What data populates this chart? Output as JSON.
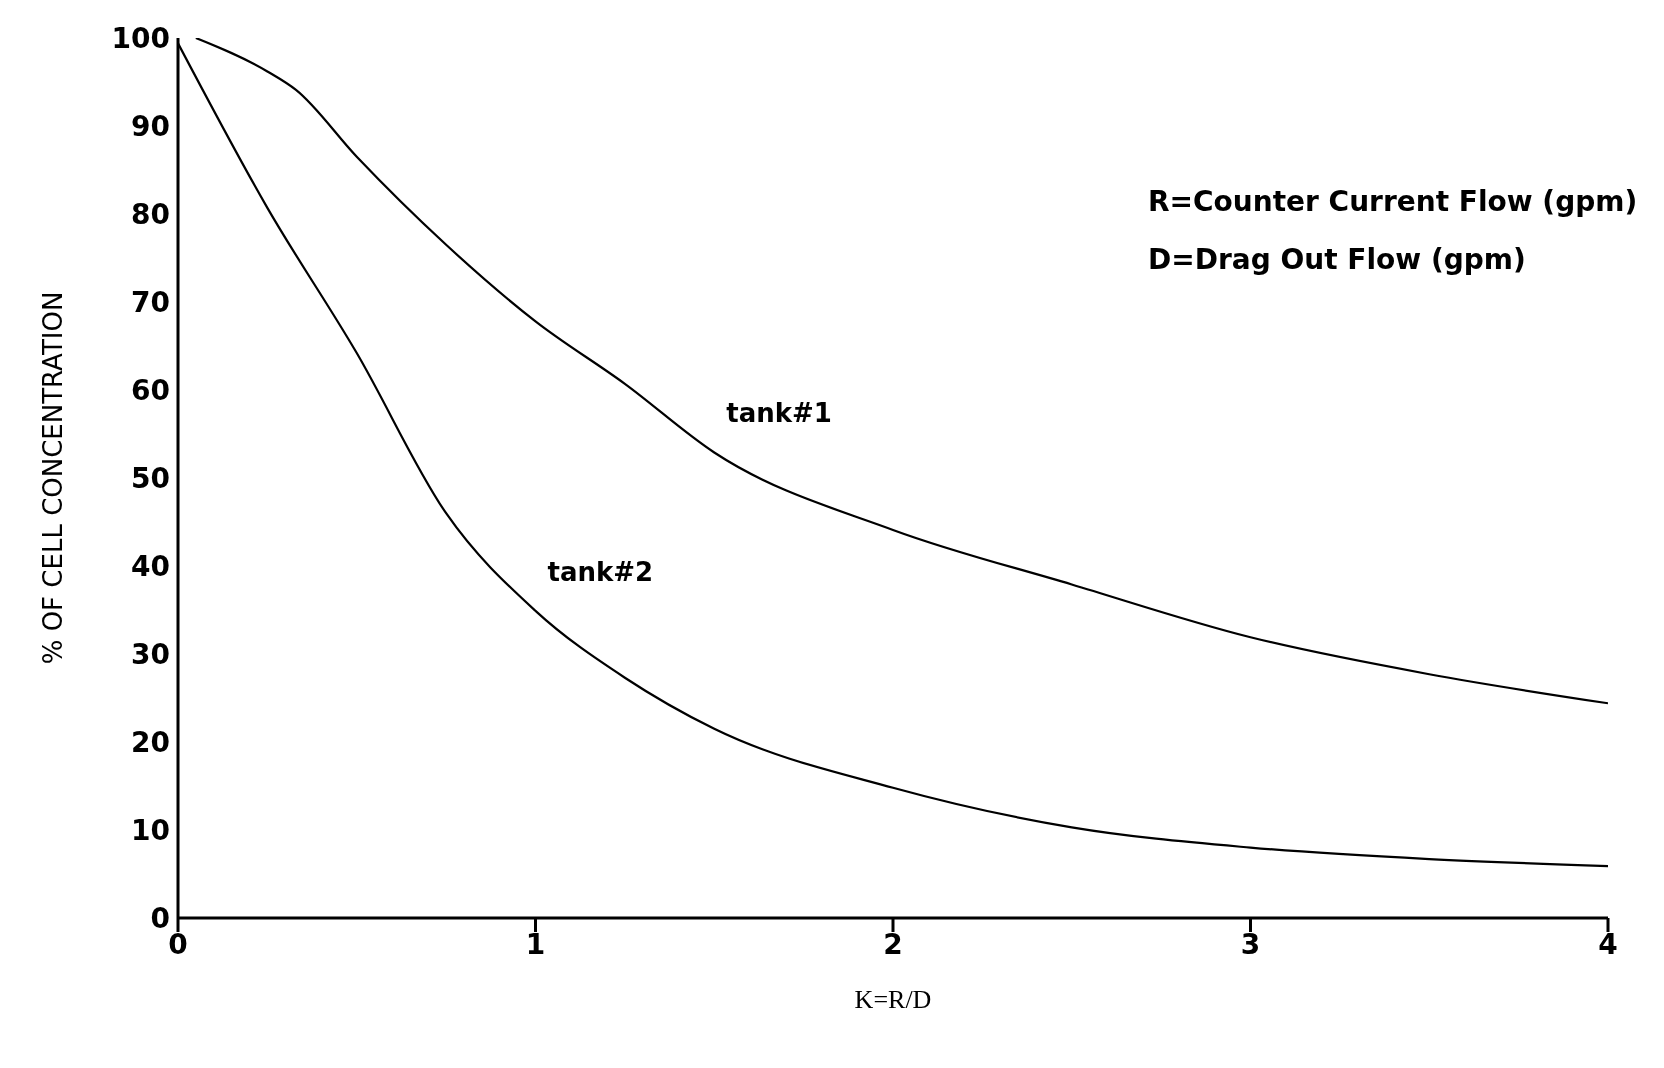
{
  "chart_data": {
    "type": "line",
    "xlabel": "K=R/D",
    "ylabel": "% OF CELL CONCENTRATION",
    "xlim": [
      0,
      4
    ],
    "xticks": [
      0,
      1,
      2,
      3,
      4
    ],
    "ylim": [
      0,
      100
    ],
    "yticks": [
      0,
      10,
      20,
      30,
      40,
      50,
      60,
      70,
      80,
      90,
      100
    ],
    "grid": false,
    "legend": false,
    "marker": "none",
    "line_style": "solid",
    "annotations": [
      "R=Counter Current Flow (gpm)",
      "D=Drag Out Flow (gpm)"
    ],
    "series": [
      {
        "name": "tank#1",
        "color": "#000000",
        "x": [
          0.05,
          0.25,
          0.33,
          0.5,
          0.75,
          1,
          1.25,
          1.5,
          2,
          2.5,
          3,
          3.5,
          4
        ],
        "values": [
          100,
          96.2,
          94.1,
          86.5,
          76.5,
          67.8,
          60.7,
          52.9,
          44.1,
          37.9,
          31.9,
          27.7,
          24.4
        ]
      },
      {
        "name": "tank#2",
        "color": "#000000",
        "x": [
          0,
          0.25,
          0.5,
          0.75,
          1,
          1.25,
          1.5,
          2,
          2.5,
          3,
          3.5,
          4
        ],
        "values": [
          99.4,
          80.7,
          64.2,
          46,
          34.9,
          27.3,
          21.5,
          14.8,
          10.3,
          8,
          6.7,
          5.9
        ]
      }
    ]
  }
}
